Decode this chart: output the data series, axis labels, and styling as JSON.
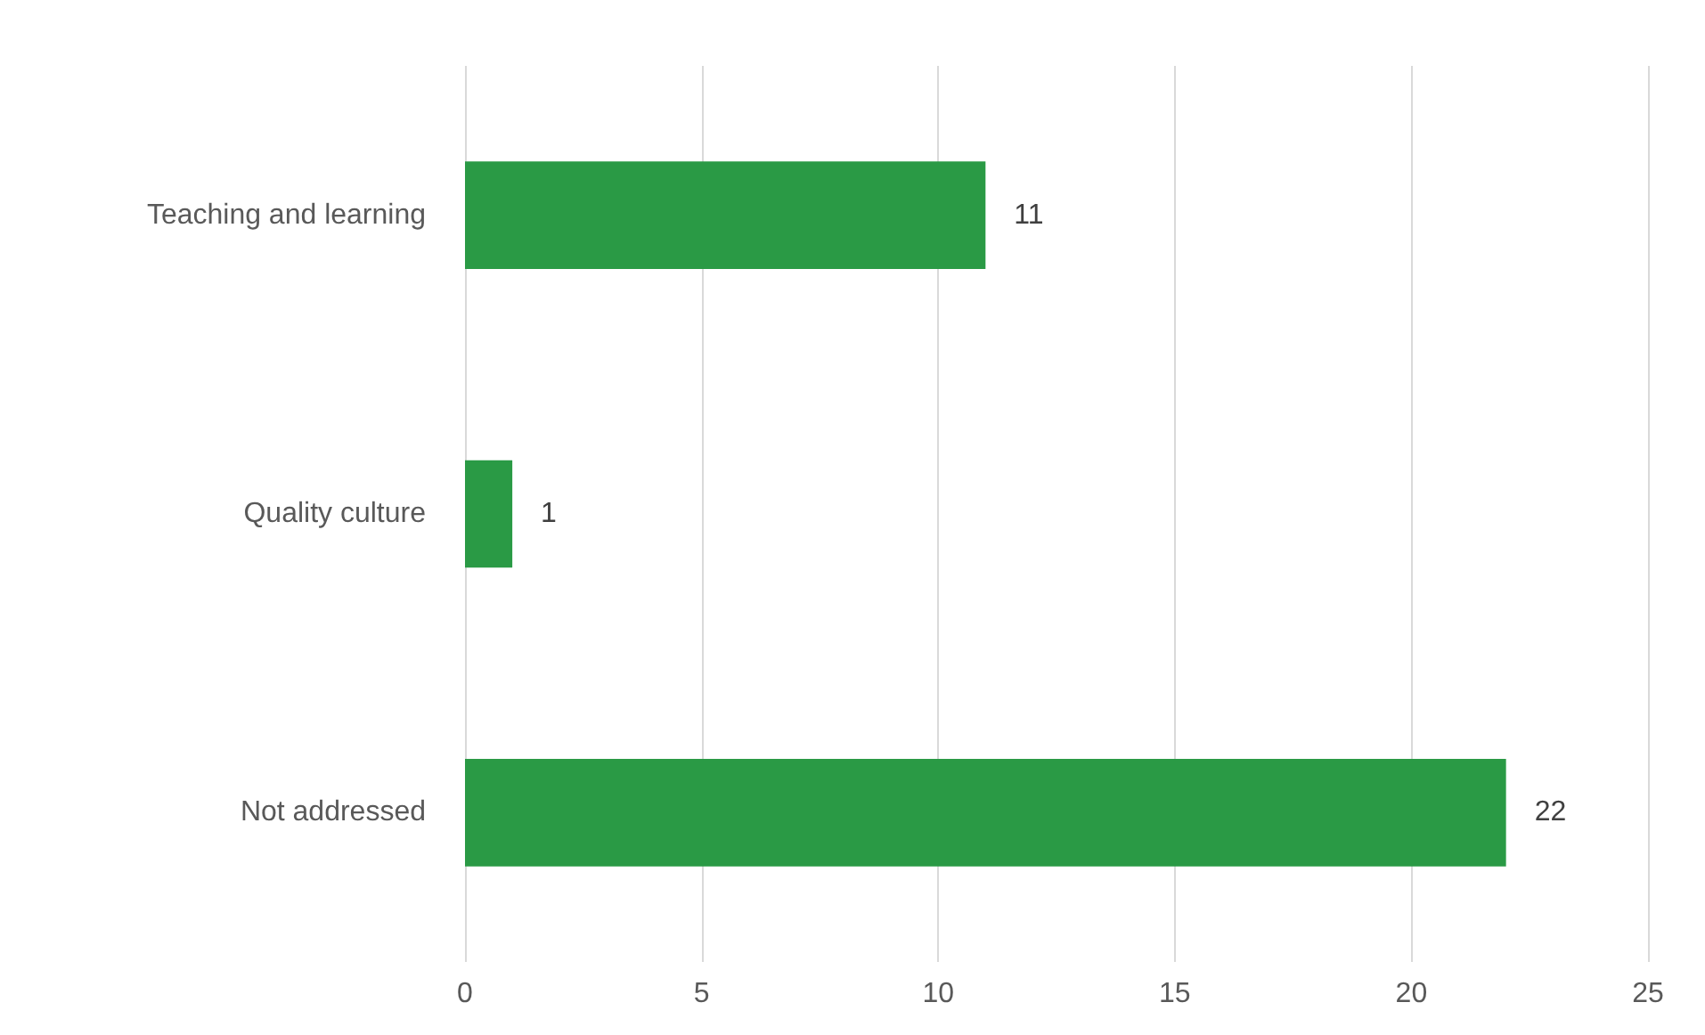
{
  "chart_data": {
    "type": "bar",
    "orientation": "horizontal",
    "categories": [
      "Teaching and learning",
      "Quality culture",
      "Not addressed"
    ],
    "values": [
      11,
      1,
      22
    ],
    "color": "#2a9a45",
    "xlim": [
      0,
      25
    ],
    "xticks": [
      0,
      5,
      10,
      15,
      20,
      25
    ],
    "grid": "x",
    "data_labels": true
  }
}
